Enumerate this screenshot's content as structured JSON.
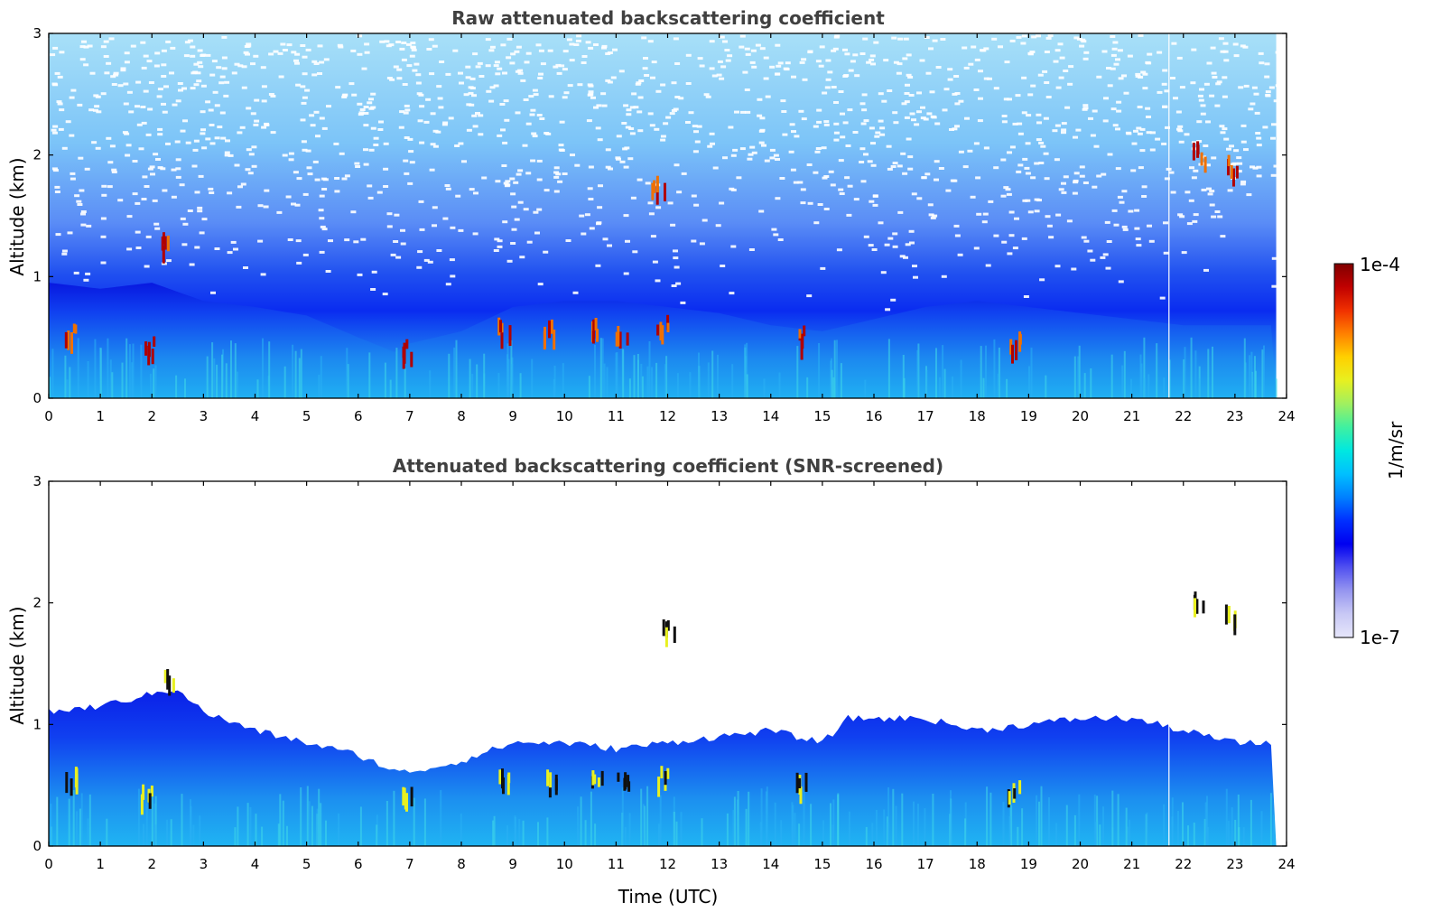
{
  "chart_data": [
    {
      "type": "heatmap",
      "title": "Raw attenuated backscattering coefficient",
      "xlabel": "",
      "ylabel": "Altitude (km)",
      "xlim": [
        0,
        24
      ],
      "ylim": [
        0,
        3
      ],
      "x_ticks": [
        "0",
        "1",
        "2",
        "3",
        "4",
        "5",
        "6",
        "7",
        "8",
        "9",
        "10",
        "11",
        "12",
        "13",
        "14",
        "15",
        "16",
        "17",
        "18",
        "19",
        "20",
        "21",
        "22",
        "23",
        "24"
      ],
      "y_ticks": [
        "0",
        "1",
        "2",
        "3"
      ],
      "boundary_layer_top_km": {
        "time_utc": [
          0,
          1,
          2,
          3,
          4,
          5,
          6,
          6.7,
          7,
          8,
          9,
          10,
          11,
          12,
          13,
          14,
          15,
          16,
          17,
          18,
          19,
          20,
          21,
          22,
          23,
          23.8
        ],
        "altitude": [
          0.95,
          0.9,
          0.95,
          0.8,
          0.75,
          0.68,
          0.5,
          0.38,
          0.45,
          0.55,
          0.75,
          0.8,
          0.8,
          0.75,
          0.7,
          0.6,
          0.55,
          0.65,
          0.75,
          0.8,
          0.75,
          0.7,
          0.65,
          0.6,
          0.6,
          0.6
        ]
      },
      "cloud_features": [
        {
          "time_utc": 0.4,
          "altitude_km": 0.6
        },
        {
          "time_utc": 1.9,
          "altitude_km": 0.45
        },
        {
          "time_utc": 2.3,
          "altitude_km": 1.3
        },
        {
          "time_utc": 6.9,
          "altitude_km": 0.42
        },
        {
          "time_utc": 8.8,
          "altitude_km": 0.6
        },
        {
          "time_utc": 9.7,
          "altitude_km": 0.6
        },
        {
          "time_utc": 10.6,
          "altitude_km": 0.6
        },
        {
          "time_utc": 11.1,
          "altitude_km": 0.58
        },
        {
          "time_utc": 11.9,
          "altitude_km": 0.62
        },
        {
          "time_utc": 11.8,
          "altitude_km": 1.8
        },
        {
          "time_utc": 14.6,
          "altitude_km": 0.55
        },
        {
          "time_utc": 18.7,
          "altitude_km": 0.5
        },
        {
          "time_utc": 22.3,
          "altitude_km": 2.05
        },
        {
          "time_utc": 22.9,
          "altitude_km": 1.95
        }
      ]
    },
    {
      "type": "heatmap",
      "title": "Attenuated backscattering coefficient (SNR-screened)",
      "xlabel": "Time (UTC)",
      "ylabel": "Altitude (km)",
      "xlim": [
        0,
        24
      ],
      "ylim": [
        0,
        3
      ],
      "x_ticks": [
        "0",
        "1",
        "2",
        "3",
        "4",
        "5",
        "6",
        "7",
        "8",
        "9",
        "10",
        "11",
        "12",
        "13",
        "14",
        "15",
        "16",
        "17",
        "18",
        "19",
        "20",
        "21",
        "22",
        "23",
        "24"
      ],
      "y_ticks": [
        "0",
        "1",
        "2",
        "3"
      ],
      "signal_top_km": {
        "time_utc": [
          0,
          1,
          2,
          2.5,
          3,
          4,
          5,
          6,
          6.8,
          7.5,
          8,
          9,
          10,
          11,
          12,
          13,
          14,
          15,
          15.5,
          16,
          17,
          18,
          19,
          20,
          21,
          22,
          23,
          23.8
        ],
        "altitude": [
          1.1,
          1.15,
          1.25,
          1.3,
          1.1,
          0.95,
          0.85,
          0.75,
          0.6,
          0.65,
          0.7,
          0.85,
          0.85,
          0.8,
          0.85,
          0.9,
          0.95,
          0.85,
          1.05,
          1.05,
          1.05,
          0.95,
          1.0,
          1.05,
          1.05,
          0.95,
          0.85,
          0.85
        ]
      },
      "cloud_features": [
        {
          "time_utc": 0.4,
          "altitude_km": 0.6
        },
        {
          "time_utc": 1.9,
          "altitude_km": 0.45
        },
        {
          "time_utc": 2.3,
          "altitude_km": 1.4
        },
        {
          "time_utc": 6.9,
          "altitude_km": 0.42
        },
        {
          "time_utc": 8.8,
          "altitude_km": 0.6
        },
        {
          "time_utc": 9.7,
          "altitude_km": 0.6
        },
        {
          "time_utc": 10.6,
          "altitude_km": 0.6
        },
        {
          "time_utc": 11.1,
          "altitude_km": 0.58
        },
        {
          "time_utc": 11.9,
          "altitude_km": 0.62
        },
        {
          "time_utc": 12.0,
          "altitude_km": 1.8
        },
        {
          "time_utc": 14.6,
          "altitude_km": 0.55
        },
        {
          "time_utc": 18.7,
          "altitude_km": 0.5
        },
        {
          "time_utc": 22.3,
          "altitude_km": 2.05
        },
        {
          "time_utc": 22.9,
          "altitude_km": 1.95
        }
      ]
    }
  ],
  "colorbar": {
    "label": "1/m/sr",
    "max_label": "1e-4",
    "min_label": "1e-7",
    "scale": "log",
    "colors": [
      "#e6e6fa",
      "#c8c8f5",
      "#9696f0",
      "#5050f0",
      "#0000f0",
      "#0030ff",
      "#0080ff",
      "#00c0ff",
      "#00e8e0",
      "#40f0a0",
      "#a0f060",
      "#e8f020",
      "#ffd000",
      "#ff8000",
      "#f03000",
      "#c00000",
      "#800000"
    ]
  }
}
